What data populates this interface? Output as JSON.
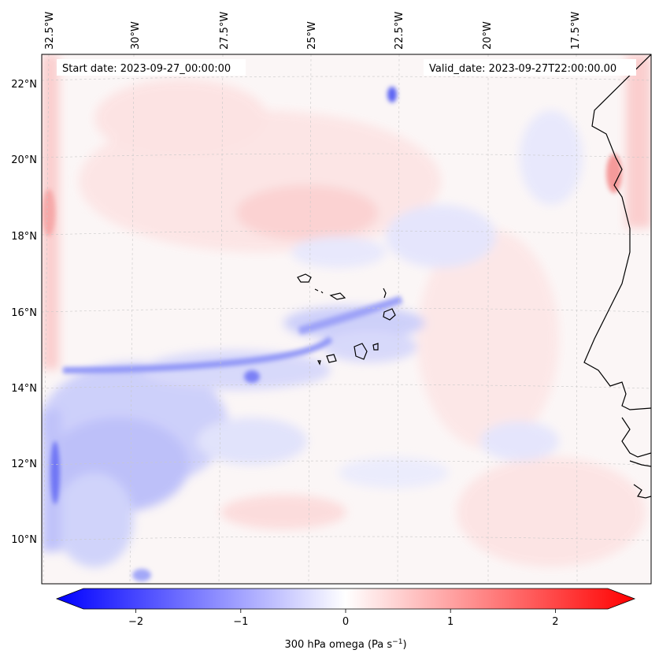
{
  "header": {
    "start_date": "Start date: 2023-09-27_00:00:00",
    "valid_date": "Valid_date: 2023-09-27T22:00:00.00"
  },
  "map": {
    "longitude_labels": [
      "32.5°W",
      "30°W",
      "27.5°W",
      "25°W",
      "22.5°W",
      "20°W",
      "17.5°W"
    ],
    "latitude_labels": [
      "22°N",
      "20°N",
      "18°N",
      "16°N",
      "14°N",
      "12°N",
      "10°N"
    ],
    "field": "300 hPa omega",
    "units": "Pa s⁻¹"
  },
  "colorbar": {
    "tick_labels": [
      "−2",
      "−1",
      "0",
      "1",
      "2"
    ],
    "ticks": [
      -2,
      -1,
      0,
      1,
      2
    ],
    "range": [
      -2.5,
      2.5
    ],
    "label": "300 hPa omega (Pa s",
    "label_sup": "−1",
    "label_end": ")",
    "colormap_colors": [
      "#0000ff",
      "#ffffff",
      "#ff0000"
    ]
  }
}
